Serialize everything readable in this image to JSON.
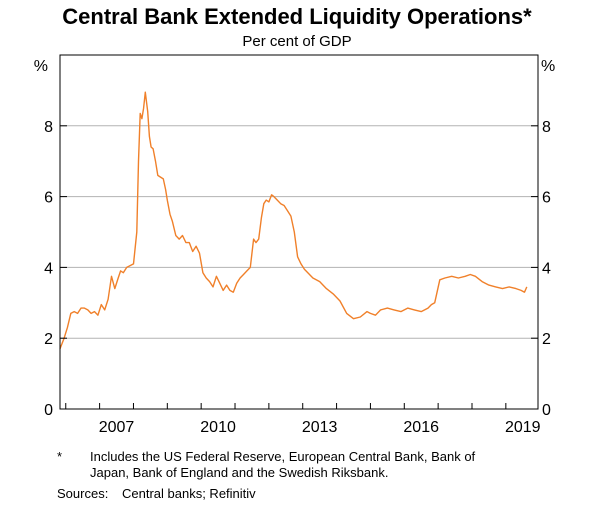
{
  "chart_data": {
    "type": "line",
    "title": "Central Bank Extended Liquidity Operations*",
    "subtitle": "Per cent of GDP",
    "left_unit": "%",
    "right_unit": "%",
    "ylim": [
      0,
      10
    ],
    "yticks": [
      0,
      2,
      4,
      6,
      8
    ],
    "ytick_labels": [
      "0",
      "2",
      "4",
      "6",
      "8"
    ],
    "xlim": [
      2005.83,
      2019.95
    ],
    "xticks": [
      2007,
      2010,
      2013,
      2016,
      2019
    ],
    "xtick_labels": [
      "2007",
      "2010",
      "2013",
      "2016",
      "2019"
    ],
    "grid": true,
    "line_color": "#f0802a",
    "series": [
      {
        "name": "Extended liquidity operations",
        "x": [
          2005.83,
          2005.95,
          2006.05,
          2006.15,
          2006.25,
          2006.35,
          2006.45,
          2006.55,
          2006.65,
          2006.75,
          2006.85,
          2006.95,
          2007.05,
          2007.15,
          2007.25,
          2007.35,
          2007.45,
          2007.55,
          2007.62,
          2007.7,
          2007.8,
          2007.9,
          2008.0,
          2008.1,
          2008.15,
          2008.2,
          2008.25,
          2008.3,
          2008.35,
          2008.42,
          2008.47,
          2008.52,
          2008.58,
          2008.65,
          2008.72,
          2008.8,
          2008.88,
          2008.95,
          2009.0,
          2009.08,
          2009.15,
          2009.25,
          2009.35,
          2009.45,
          2009.55,
          2009.65,
          2009.75,
          2009.85,
          2009.95,
          2010.05,
          2010.15,
          2010.25,
          2010.35,
          2010.45,
          2010.55,
          2010.65,
          2010.75,
          2010.85,
          2010.95,
          2011.05,
          2011.15,
          2011.25,
          2011.35,
          2011.45,
          2011.55,
          2011.62,
          2011.7,
          2011.78,
          2011.85,
          2011.92,
          2012.0,
          2012.08,
          2012.15,
          2012.25,
          2012.35,
          2012.45,
          2012.55,
          2012.65,
          2012.75,
          2012.85,
          2012.95,
          2013.05,
          2013.15,
          2013.3,
          2013.5,
          2013.7,
          2013.9,
          2014.1,
          2014.3,
          2014.5,
          2014.7,
          2014.9,
          2015.0,
          2015.15,
          2015.3,
          2015.5,
          2015.7,
          2015.9,
          2016.1,
          2016.3,
          2016.5,
          2016.6,
          2016.7,
          2016.8,
          2016.9,
          2017.05,
          2017.2,
          2017.4,
          2017.6,
          2017.8,
          2017.95,
          2018.1,
          2018.3,
          2018.5,
          2018.7,
          2018.9,
          2019.1,
          2019.3,
          2019.45,
          2019.55,
          2019.62
        ],
        "values": [
          1.7,
          2.0,
          2.3,
          2.7,
          2.75,
          2.7,
          2.85,
          2.85,
          2.8,
          2.7,
          2.75,
          2.65,
          2.95,
          2.8,
          3.1,
          3.75,
          3.4,
          3.7,
          3.9,
          3.85,
          4.0,
          4.05,
          4.1,
          5.0,
          7.0,
          8.35,
          8.2,
          8.5,
          8.95,
          8.4,
          7.7,
          7.4,
          7.35,
          7.0,
          6.6,
          6.55,
          6.5,
          6.2,
          5.9,
          5.5,
          5.3,
          4.9,
          4.8,
          4.9,
          4.7,
          4.7,
          4.45,
          4.6,
          4.4,
          3.85,
          3.7,
          3.6,
          3.45,
          3.75,
          3.55,
          3.35,
          3.5,
          3.35,
          3.3,
          3.55,
          3.7,
          3.8,
          3.9,
          4.0,
          4.8,
          4.7,
          4.8,
          5.4,
          5.8,
          5.9,
          5.85,
          6.05,
          6.0,
          5.9,
          5.8,
          5.75,
          5.6,
          5.45,
          5.0,
          4.3,
          4.1,
          3.95,
          3.85,
          3.7,
          3.6,
          3.4,
          3.25,
          3.05,
          2.7,
          2.55,
          2.6,
          2.75,
          2.7,
          2.65,
          2.8,
          2.85,
          2.8,
          2.75,
          2.85,
          2.8,
          2.75,
          2.8,
          2.85,
          2.95,
          3.0,
          3.65,
          3.7,
          3.75,
          3.7,
          3.75,
          3.8,
          3.75,
          3.6,
          3.5,
          3.45,
          3.4,
          3.45,
          3.4,
          3.35,
          3.3,
          3.45
        ]
      }
    ],
    "footnote_marker": "*",
    "footnote_line1": "Includes the US Federal Reserve, European Central Bank, Bank of",
    "footnote_line2": "Japan, Bank of England and the Swedish Riksbank.",
    "sources_label": "Sources:",
    "sources_text": "Central banks; Refinitiv"
  }
}
